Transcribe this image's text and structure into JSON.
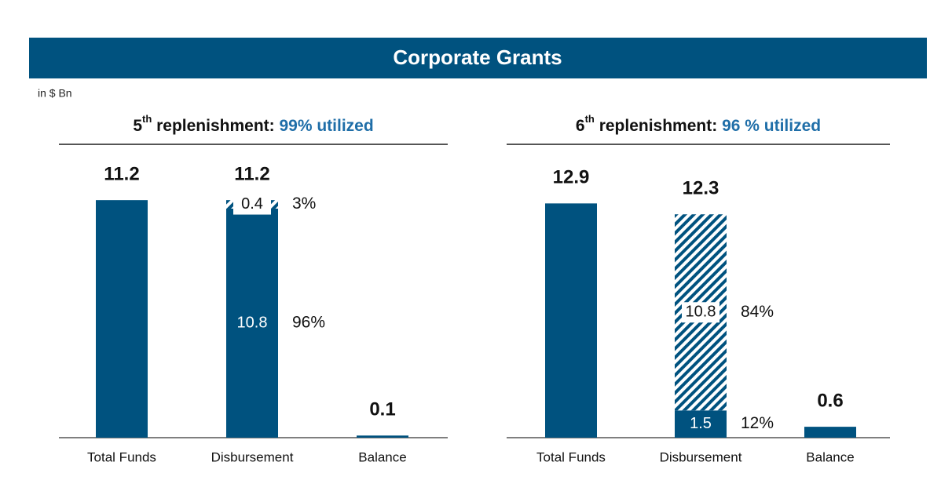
{
  "header": {
    "title": "Corporate Grants",
    "unit": "in $ Bn"
  },
  "chart_data": [
    {
      "type": "bar",
      "title_number": "5",
      "title_suffix": "th",
      "title_text": " replenishment: ",
      "title_highlight": "99% utilized",
      "categories": [
        "Total Funds",
        "Disbursement",
        "Balance"
      ],
      "series": [
        {
          "color": "#00527f",
          "fill": "solid",
          "values": [
            11.2,
            10.8,
            0.1
          ],
          "value_labels": [
            null,
            "10.8",
            null
          ],
          "share_labels": [
            null,
            "96%",
            null
          ]
        },
        {
          "color": "#00527f",
          "fill": "hatch",
          "values": [
            null,
            0.4,
            null
          ],
          "value_labels": [
            null,
            "0.4",
            null
          ],
          "share_labels": [
            null,
            "3%",
            null
          ]
        }
      ],
      "totals": [
        11.2,
        11.2,
        0.1
      ],
      "ylim": [
        0,
        12.5
      ]
    },
    {
      "type": "bar",
      "title_number": "6",
      "title_suffix": "th",
      "title_text": " replenishment: ",
      "title_highlight": "96 % utilized",
      "categories": [
        "Total Funds",
        "Disbursement",
        "Balance"
      ],
      "series": [
        {
          "color": "#00527f",
          "fill": "solid",
          "values": [
            12.9,
            1.5,
            0.6
          ],
          "value_labels": [
            null,
            "1.5",
            null
          ],
          "share_labels": [
            null,
            "12%",
            null
          ]
        },
        {
          "color": "#00527f",
          "fill": "hatch",
          "values": [
            null,
            10.8,
            null
          ],
          "value_labels": [
            null,
            "10.8",
            null
          ],
          "share_labels": [
            null,
            "84%",
            null
          ]
        }
      ],
      "totals": [
        12.9,
        12.3,
        0.6
      ],
      "ylim": [
        0,
        14.6
      ]
    }
  ]
}
